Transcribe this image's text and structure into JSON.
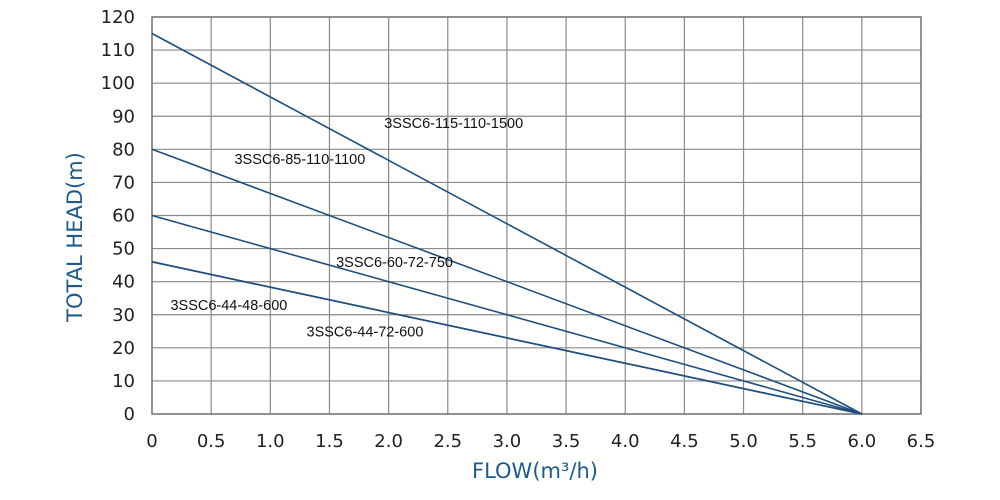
{
  "chart_data": {
    "type": "line",
    "title": "",
    "xlabel": "FLOW(m³/h)",
    "ylabel": "TOTAL HEAD(m)",
    "xlim": [
      0,
      6.5
    ],
    "ylim": [
      0,
      120
    ],
    "x_ticks": [
      "0",
      "0.5",
      "1.0",
      "1.5",
      "2.0",
      "2.5",
      "3.0",
      "3.5",
      "4.0",
      "4.5",
      "5.0",
      "5.5",
      "6.0",
      "6.5"
    ],
    "y_ticks": [
      "0",
      "10",
      "20",
      "30",
      "40",
      "50",
      "60",
      "70",
      "80",
      "90",
      "100",
      "110",
      "120"
    ],
    "grid": true,
    "line_color": "#1e4f7e",
    "series": [
      {
        "name": "3SSC6-115-110-1500",
        "x": [
          0,
          6.0
        ],
        "y": [
          115,
          0
        ],
        "label_at": [
          2.55,
          86.5
        ]
      },
      {
        "name": "3SSC6-85-110-1100",
        "x": [
          0,
          6.0
        ],
        "y": [
          80,
          0
        ],
        "label_at": [
          1.25,
          75.5
        ]
      },
      {
        "name": "3SSC6-60-72-750",
        "x": [
          0,
          6.0
        ],
        "y": [
          60,
          0
        ],
        "label_at": [
          2.05,
          44.5
        ]
      },
      {
        "name": "3SSC6-44-48-600",
        "x": [
          0,
          6.0
        ],
        "y": [
          46,
          0
        ],
        "label_at": [
          0.65,
          31.5
        ]
      },
      {
        "name": "3SSC6-44-72-600",
        "x": [
          0,
          6.0
        ],
        "y": [
          46,
          0
        ],
        "label_at": [
          1.8,
          23.5
        ]
      }
    ]
  }
}
